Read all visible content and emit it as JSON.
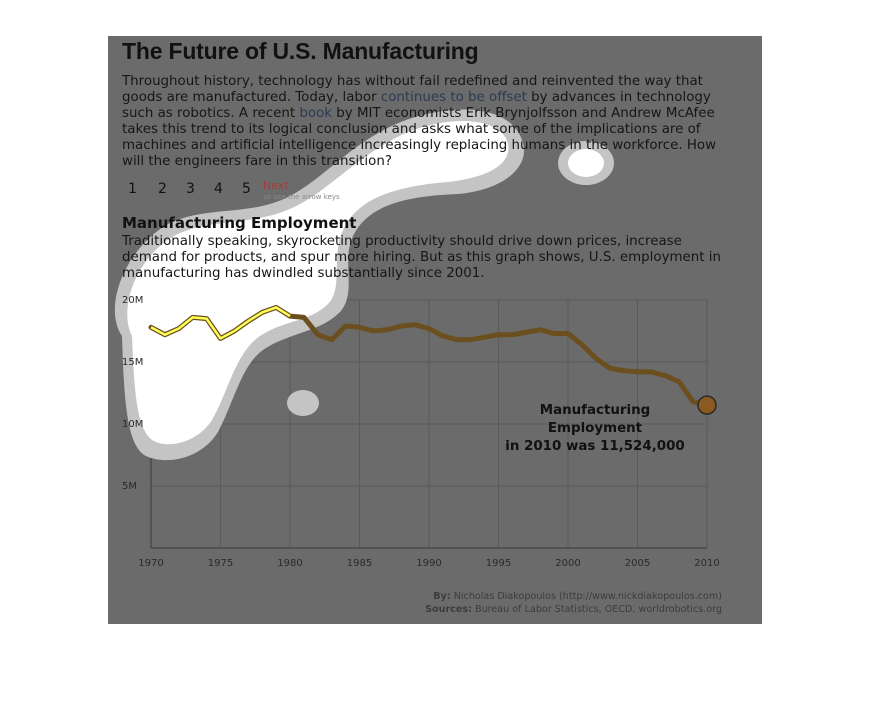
{
  "page": {
    "title": "The Future of U.S. Manufacturing",
    "intro_parts": {
      "a": "Throughout history, technology has without fail redefined and reinvented the way that goods are manufactured. Today, labor ",
      "link1": "continues to be offset",
      "b": " by advances in technology such as robotics. A recent ",
      "link2": "book",
      "c": " by MIT economists Erik Brynjolfsson and Andrew McAfee takes this trend to its logical conclusion and asks what some of the implications are of machines and artificial intelligence increasingly replacing humans in the workforce. How will the engineers fare in this transition?"
    },
    "pager": {
      "pages": [
        "1",
        "2",
        "3",
        "4",
        "5"
      ],
      "next_label": "Next",
      "next_hint": "or use the arrow keys"
    },
    "section_heading": "Manufacturing Employment",
    "section_text": "Traditionally speaking, skyrocketing productivity should drive down prices, increase demand for products, and spur more hiring. But as this graph shows, U.S. employment in manufacturing has dwindled substantially since 2001.",
    "annotation": {
      "line1": "Manufacturing Employment",
      "line2": "in 2010 was 11,524,000"
    },
    "credits": {
      "by_label": "By:",
      "by_value": "Nicholas Diakopoulos (http://www.nickdiakopoulos.com)",
      "sources_label": "Sources:",
      "sources_value": "Bureau of Labor Statistics, OECD, worldrobotics.org"
    }
  },
  "colors": {
    "panel_bg": "#6b6b6b",
    "line": "#6b4f1e",
    "marker_fill": "#8a5a20",
    "gaze_fill": "#ffffff",
    "gaze_halo": "#c4c4c4",
    "gaze_line": "#ffff55",
    "grid": "#5a5a5a"
  },
  "chart_data": {
    "type": "line",
    "title": "Manufacturing Employment",
    "xlabel": "",
    "ylabel": "",
    "xlim": [
      1970,
      2010
    ],
    "ylim": [
      0,
      20
    ],
    "x_ticks": [
      "1970",
      "1975",
      "1980",
      "1985",
      "1990",
      "1995",
      "2000",
      "2005",
      "2010"
    ],
    "y_ticks": [
      "5M",
      "10M",
      "15M",
      "20M"
    ],
    "grid": true,
    "x": [
      1970,
      1971,
      1972,
      1973,
      1974,
      1975,
      1976,
      1977,
      1978,
      1979,
      1980,
      1981,
      1982,
      1983,
      1984,
      1985,
      1986,
      1987,
      1988,
      1989,
      1990,
      1991,
      1992,
      1993,
      1994,
      1995,
      1996,
      1997,
      1998,
      1999,
      2000,
      2001,
      2002,
      2003,
      2004,
      2005,
      2006,
      2007,
      2008,
      2009,
      2010
    ],
    "series": [
      {
        "values": [
          17.8,
          17.2,
          17.7,
          18.6,
          18.5,
          16.9,
          17.5,
          18.3,
          19.0,
          19.4,
          18.7,
          18.6,
          17.2,
          16.8,
          17.9,
          17.8,
          17.5,
          17.6,
          17.9,
          18.0,
          17.7,
          17.1,
          16.8,
          16.8,
          17.0,
          17.2,
          17.2,
          17.4,
          17.6,
          17.3,
          17.3,
          16.4,
          15.3,
          14.5,
          14.3,
          14.2,
          14.2,
          13.9,
          13.4,
          11.8,
          11.524
        ]
      }
    ],
    "highlight": {
      "x": 2010,
      "y": 11.524
    }
  }
}
